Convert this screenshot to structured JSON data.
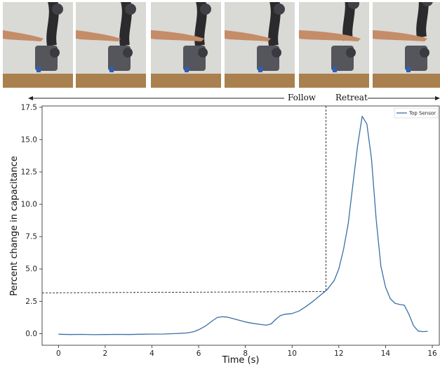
{
  "photo_strip": {
    "frames": [
      {
        "hand": "reach"
      },
      {
        "hand": "reach"
      },
      {
        "hand": "reach"
      },
      {
        "hand": "reach"
      },
      {
        "hand": "reach"
      },
      {
        "hand": "reach"
      }
    ]
  },
  "phase_bar": {
    "follow_label": "Follow",
    "retreat_label": "Retreat"
  },
  "chart_data": {
    "type": "line",
    "xlabel": "Time (s)",
    "ylabel": "Percent change in capacitance",
    "xlim": [
      -0.7,
      16.3
    ],
    "ylim": [
      -0.9,
      17.6
    ],
    "xticks": [
      0,
      2,
      4,
      6,
      8,
      10,
      12,
      14,
      16
    ],
    "yticks": [
      0.0,
      2.5,
      5.0,
      7.5,
      10.0,
      12.5,
      15.0,
      17.5
    ],
    "ytick_labels": [
      "0.0",
      "2.5",
      "5.0",
      "7.5",
      "10.0",
      "12.5",
      "15.0",
      "17.5"
    ],
    "legend": "top-right",
    "series": [
      {
        "name": "Top Sensor",
        "color": "#3a6fa7",
        "x": [
          0,
          0.5,
          1,
          1.5,
          2,
          2.5,
          3,
          3.5,
          4,
          4.5,
          5,
          5.5,
          5.8,
          6,
          6.3,
          6.6,
          6.8,
          7,
          7.2,
          7.5,
          7.8,
          8,
          8.3,
          8.6,
          8.9,
          9.1,
          9.3,
          9.5,
          9.7,
          10,
          10.3,
          10.6,
          10.9,
          11.2,
          11.5,
          11.8,
          12,
          12.2,
          12.4,
          12.6,
          12.8,
          13,
          13.2,
          13.4,
          13.6,
          13.8,
          14,
          14.2,
          14.4,
          14.6,
          14.8,
          15,
          15.2,
          15.4,
          15.6,
          15.8
        ],
        "y": [
          -0.05,
          -0.07,
          -0.06,
          -0.08,
          -0.07,
          -0.06,
          -0.07,
          -0.05,
          -0.04,
          -0.03,
          0.0,
          0.05,
          0.15,
          0.3,
          0.6,
          1.0,
          1.25,
          1.3,
          1.28,
          1.15,
          1.0,
          0.9,
          0.8,
          0.72,
          0.65,
          0.75,
          1.1,
          1.4,
          1.5,
          1.55,
          1.75,
          2.1,
          2.5,
          2.95,
          3.4,
          4.1,
          5.0,
          6.5,
          8.5,
          11.5,
          14.5,
          16.8,
          16.2,
          13.5,
          8.8,
          5.2,
          3.6,
          2.7,
          2.35,
          2.25,
          2.2,
          1.5,
          0.6,
          0.2,
          0.15,
          0.18
        ]
      }
    ],
    "annotation": {
      "time": 11.45,
      "level": 3.25,
      "level_start": 3.15
    }
  }
}
